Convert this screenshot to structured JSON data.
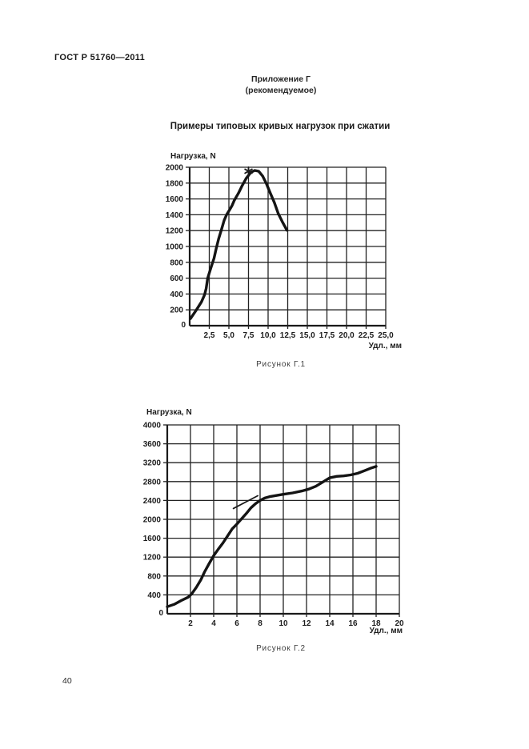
{
  "page": {
    "standard": "ГОСТ Р 51760—2011",
    "annex_title": "Приложение Г",
    "annex_subtitle": "(рекомендуемое)",
    "section_title": "Примеры типовых кривых нагрузок при сжатии",
    "page_number": "40"
  },
  "chart_data": [
    {
      "type": "line",
      "caption": "Рисунок Г.1",
      "ylabel": "Нагрузка, N",
      "xlabel": "Удл., мм",
      "xlim": [
        0,
        25
      ],
      "ylim": [
        0,
        2000
      ],
      "grid": true,
      "legend": "none",
      "origin_label": "0",
      "xtick_values": [
        2.5,
        5,
        7.5,
        10,
        12.5,
        15,
        17.5,
        20,
        22.5,
        25
      ],
      "xtick_labels": [
        "2,5",
        "5,0",
        "7,5",
        "10,0",
        "12,5",
        "15,0",
        "17,5",
        "20,0",
        "22,5",
        "25,0"
      ],
      "ytick_values": [
        200,
        400,
        600,
        800,
        1000,
        1200,
        1400,
        1600,
        1800,
        2000
      ],
      "ytick_labels": [
        "200",
        "400",
        "600",
        "800",
        "1000",
        "1200",
        "1400",
        "1600",
        "1800",
        "2000"
      ],
      "series": [
        {
          "name": "compression-load-curve",
          "points": [
            [
              0.1,
              90
            ],
            [
              0.8,
              190
            ],
            [
              1.5,
              300
            ],
            [
              1.9,
              390
            ],
            [
              2.1,
              470
            ],
            [
              2.3,
              600
            ],
            [
              2.7,
              730
            ],
            [
              3.1,
              850
            ],
            [
              3.4,
              980
            ],
            [
              3.7,
              1100
            ],
            [
              4.1,
              1230
            ],
            [
              4.4,
              1330
            ],
            [
              4.7,
              1400
            ],
            [
              5.1,
              1465
            ],
            [
              5.4,
              1515
            ],
            [
              5.7,
              1585
            ],
            [
              6.2,
              1670
            ],
            [
              6.7,
              1770
            ],
            [
              7.2,
              1860
            ],
            [
              7.8,
              1935
            ],
            [
              8.3,
              1960
            ],
            [
              8.8,
              1950
            ],
            [
              9.3,
              1890
            ],
            [
              9.8,
              1790
            ],
            [
              10.3,
              1670
            ],
            [
              10.8,
              1555
            ],
            [
              11.3,
              1415
            ],
            [
              11.8,
              1315
            ],
            [
              12.2,
              1240
            ],
            [
              12.4,
              1205
            ]
          ]
        }
      ],
      "peak_marker": {
        "x": 7.5,
        "y": 1950,
        "style": "asterisk"
      }
    },
    {
      "type": "line",
      "caption": "Рисунок Г.2",
      "ylabel": "Нагрузка, N",
      "xlabel": "Удл., мм",
      "xlim": [
        0,
        20
      ],
      "ylim": [
        0,
        4000
      ],
      "grid": true,
      "legend": "none",
      "origin_label": "0",
      "xtick_values": [
        2,
        4,
        6,
        8,
        10,
        12,
        14,
        16,
        18,
        20
      ],
      "xtick_labels": [
        "2",
        "4",
        "6",
        "8",
        "10",
        "12",
        "14",
        "16",
        "18",
        "20"
      ],
      "ytick_values": [
        400,
        800,
        1200,
        1600,
        2000,
        2400,
        2800,
        3200,
        3600,
        4000
      ],
      "ytick_labels": [
        "400",
        "800",
        "1200",
        "1600",
        "2000",
        "2400",
        "2800",
        "3200",
        "3600",
        "4000"
      ],
      "series": [
        {
          "name": "compression-load-curve",
          "points": [
            [
              0,
              150
            ],
            [
              0.6,
              200
            ],
            [
              1.2,
              280
            ],
            [
              1.8,
              350
            ],
            [
              2.1,
              420
            ],
            [
              2.5,
              560
            ],
            [
              2.9,
              720
            ],
            [
              3.2,
              880
            ],
            [
              3.6,
              1060
            ],
            [
              4.0,
              1230
            ],
            [
              4.4,
              1370
            ],
            [
              4.8,
              1500
            ],
            [
              5.2,
              1650
            ],
            [
              5.6,
              1800
            ],
            [
              6.0,
              1900
            ],
            [
              6.4,
              2010
            ],
            [
              6.8,
              2120
            ],
            [
              7.2,
              2240
            ],
            [
              7.6,
              2330
            ],
            [
              8.0,
              2400
            ],
            [
              8.4,
              2450
            ],
            [
              8.8,
              2480
            ],
            [
              9.4,
              2505
            ],
            [
              10.0,
              2530
            ],
            [
              10.8,
              2560
            ],
            [
              11.6,
              2600
            ],
            [
              12.2,
              2640
            ],
            [
              12.8,
              2700
            ],
            [
              13.4,
              2790
            ],
            [
              14.0,
              2880
            ],
            [
              14.6,
              2910
            ],
            [
              15.2,
              2920
            ],
            [
              15.8,
              2940
            ],
            [
              16.4,
              2975
            ],
            [
              17.0,
              3030
            ],
            [
              17.6,
              3090
            ],
            [
              18.0,
              3120
            ]
          ]
        }
      ],
      "annotation_line": {
        "name": "tangent-line",
        "points": [
          [
            5.7,
            2230
          ],
          [
            7.8,
            2500
          ]
        ]
      }
    }
  ]
}
